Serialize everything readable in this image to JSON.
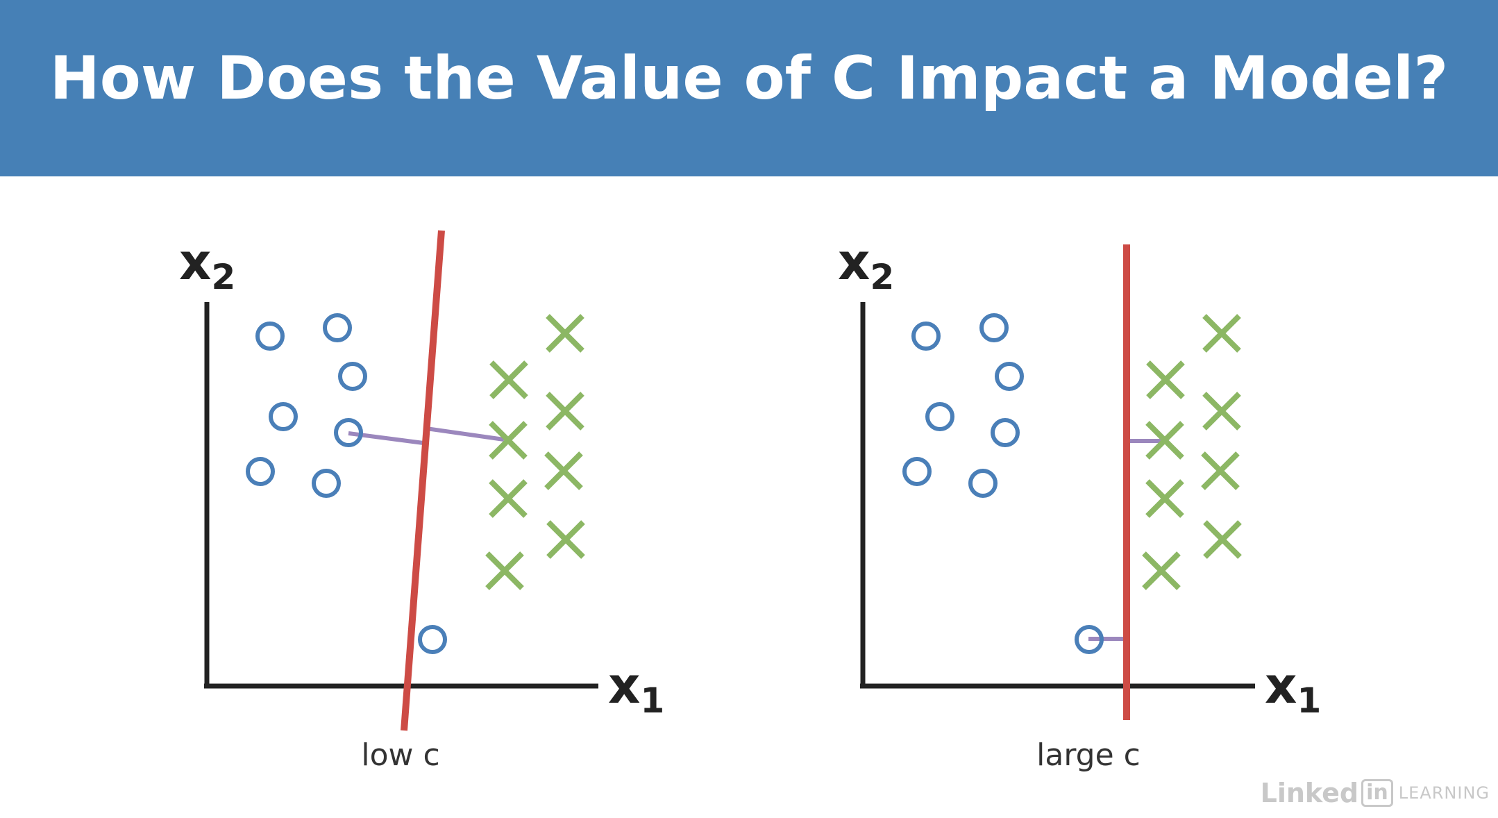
{
  "title": "How Does the Value of C Impact a Model?",
  "colors": {
    "header_bg": "#4680b6",
    "circle": "#4a7fb8",
    "cross": "#8cb764",
    "boundary": "#cd4b45",
    "distance": "#9b87bd",
    "axis": "#222222"
  },
  "panels": [
    {
      "caption": "low c",
      "x_axis_label": "x",
      "x_axis_subscript": "1",
      "y_axis_label": "x",
      "y_axis_subscript": "2"
    },
    {
      "caption": "large c",
      "x_axis_label": "x",
      "x_axis_subscript": "1",
      "y_axis_label": "x",
      "y_axis_subscript": "2"
    }
  ],
  "watermark": {
    "brand": "Linked",
    "badge": "in",
    "product": "LEARNING"
  }
}
